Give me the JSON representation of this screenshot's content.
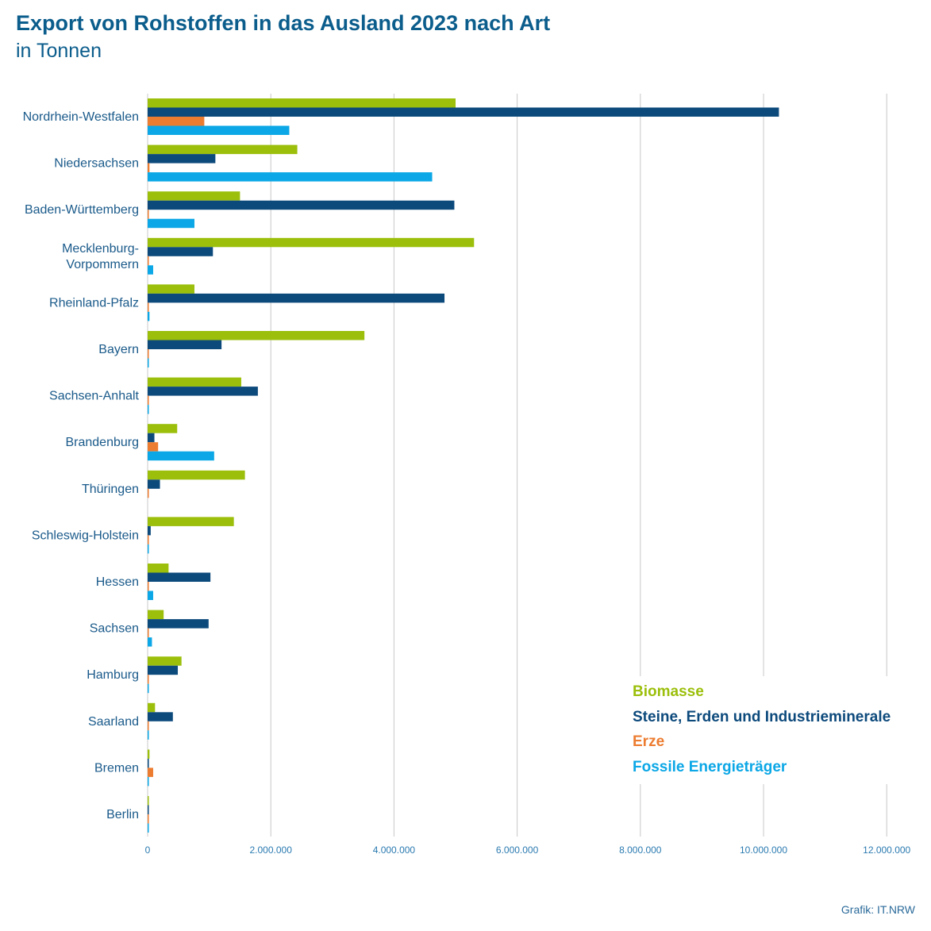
{
  "title": "Export von Rohstoffen in das Ausland 2023 nach Art",
  "subtitle": "in Tonnen",
  "source": "Grafik: IT.NRW",
  "colors": {
    "biomasse": "#9bbf0b",
    "steine": "#0d4a7c",
    "erze": "#ec7c30",
    "fossil": "#0ba7e6",
    "grid": "#c8c8c8",
    "text": "#1a5a8a"
  },
  "chart_data": {
    "type": "bar",
    "orientation": "horizontal",
    "title": "Export von Rohstoffen in das Ausland 2023 nach Art",
    "subtitle": "in Tonnen",
    "xlim": [
      0,
      12000000
    ],
    "x_ticks": [
      0,
      2000000,
      4000000,
      6000000,
      8000000,
      10000000,
      12000000
    ],
    "x_tick_labels": [
      "0",
      "2.000.000",
      "4.000.000",
      "6.000.000",
      "8.000.000",
      "10.000.000",
      "12.000.000"
    ],
    "grid": "vertical",
    "legend_position": "bottom-right",
    "categories": [
      [
        "Nordrhein-Westfalen"
      ],
      [
        "Niedersachsen"
      ],
      [
        "Baden-Württemberg"
      ],
      [
        "Mecklenburg-",
        "Vorpommern"
      ],
      [
        "Rheinland-Pfalz"
      ],
      [
        "Bayern"
      ],
      [
        "Sachsen-Anhalt"
      ],
      [
        "Brandenburg"
      ],
      [
        "Thüringen"
      ],
      [
        "Schleswig-Holstein"
      ],
      [
        "Hessen"
      ],
      [
        "Sachsen"
      ],
      [
        "Hamburg"
      ],
      [
        "Saarland"
      ],
      [
        "Bremen"
      ],
      [
        "Berlin"
      ]
    ],
    "series": [
      {
        "key": "biomasse",
        "name": "Biomasse",
        "values": [
          5000000,
          2430000,
          1500000,
          5300000,
          760000,
          3520000,
          1520000,
          480000,
          1580000,
          1400000,
          340000,
          260000,
          550000,
          120000,
          30000,
          10000
        ]
      },
      {
        "key": "steine",
        "name": "Steine, Erden und Industrieminerale",
        "values": [
          10250000,
          1100000,
          4980000,
          1060000,
          4820000,
          1200000,
          1790000,
          110000,
          200000,
          50000,
          1020000,
          990000,
          490000,
          410000,
          20000,
          15000
        ]
      },
      {
        "key": "erze",
        "name": "Erze",
        "values": [
          920000,
          30000,
          15000,
          5000,
          15000,
          5000,
          10000,
          170000,
          5000,
          15000,
          10000,
          10000,
          15000,
          5000,
          90000,
          5000
        ]
      },
      {
        "key": "fossil",
        "name": "Fossile Energieträger",
        "values": [
          2300000,
          4620000,
          760000,
          90000,
          30000,
          10000,
          10000,
          1080000,
          0,
          10000,
          90000,
          70000,
          10000,
          10000,
          10000,
          10000
        ]
      }
    ]
  }
}
